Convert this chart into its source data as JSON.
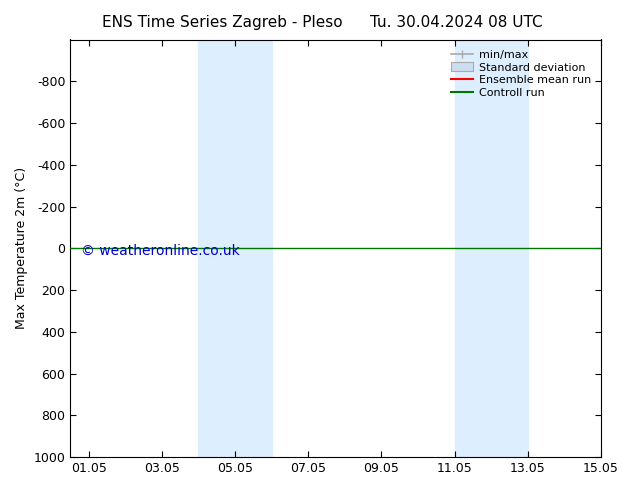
{
  "title_left": "ENS Time Series Zagreb - Pleso",
  "title_right": "Tu. 30.04.2024 08 UTC",
  "ylabel": "Max Temperature 2m (°C)",
  "ylim_bottom": 1000,
  "ylim_top": -1000,
  "yticks": [
    -800,
    -600,
    -400,
    -200,
    0,
    200,
    400,
    600,
    800,
    1000
  ],
  "xlim_min": 0,
  "xlim_max": 14.5,
  "xtick_labels": [
    "01.05",
    "03.05",
    "05.05",
    "07.05",
    "09.05",
    "11.05",
    "13.05",
    "15.05"
  ],
  "xtick_positions": [
    0.5,
    2.5,
    4.5,
    6.5,
    8.5,
    10.5,
    12.5,
    14.5
  ],
  "shaded_regions": [
    {
      "x_start": 3.5,
      "x_end": 5.5,
      "color": "#ddeeff"
    },
    {
      "x_start": 10.5,
      "x_end": 12.5,
      "color": "#ddeeff"
    }
  ],
  "green_line_y": 0,
  "background_color": "#ffffff",
  "plot_bg_color": "#ffffff",
  "legend_entries": [
    "min/max",
    "Standard deviation",
    "Ensemble mean run",
    "Controll run"
  ],
  "minmax_color": "#aaaaaa",
  "std_facecolor": "#ccddee",
  "std_edgecolor": "#aaaaaa",
  "ensemble_color": "#ff0000",
  "control_color": "#007700",
  "watermark_text": "© weatheronline.co.uk",
  "watermark_color": "#0000cc",
  "watermark_fontsize": 10,
  "title_fontsize": 11,
  "axis_fontsize": 9,
  "legend_fontsize": 8
}
